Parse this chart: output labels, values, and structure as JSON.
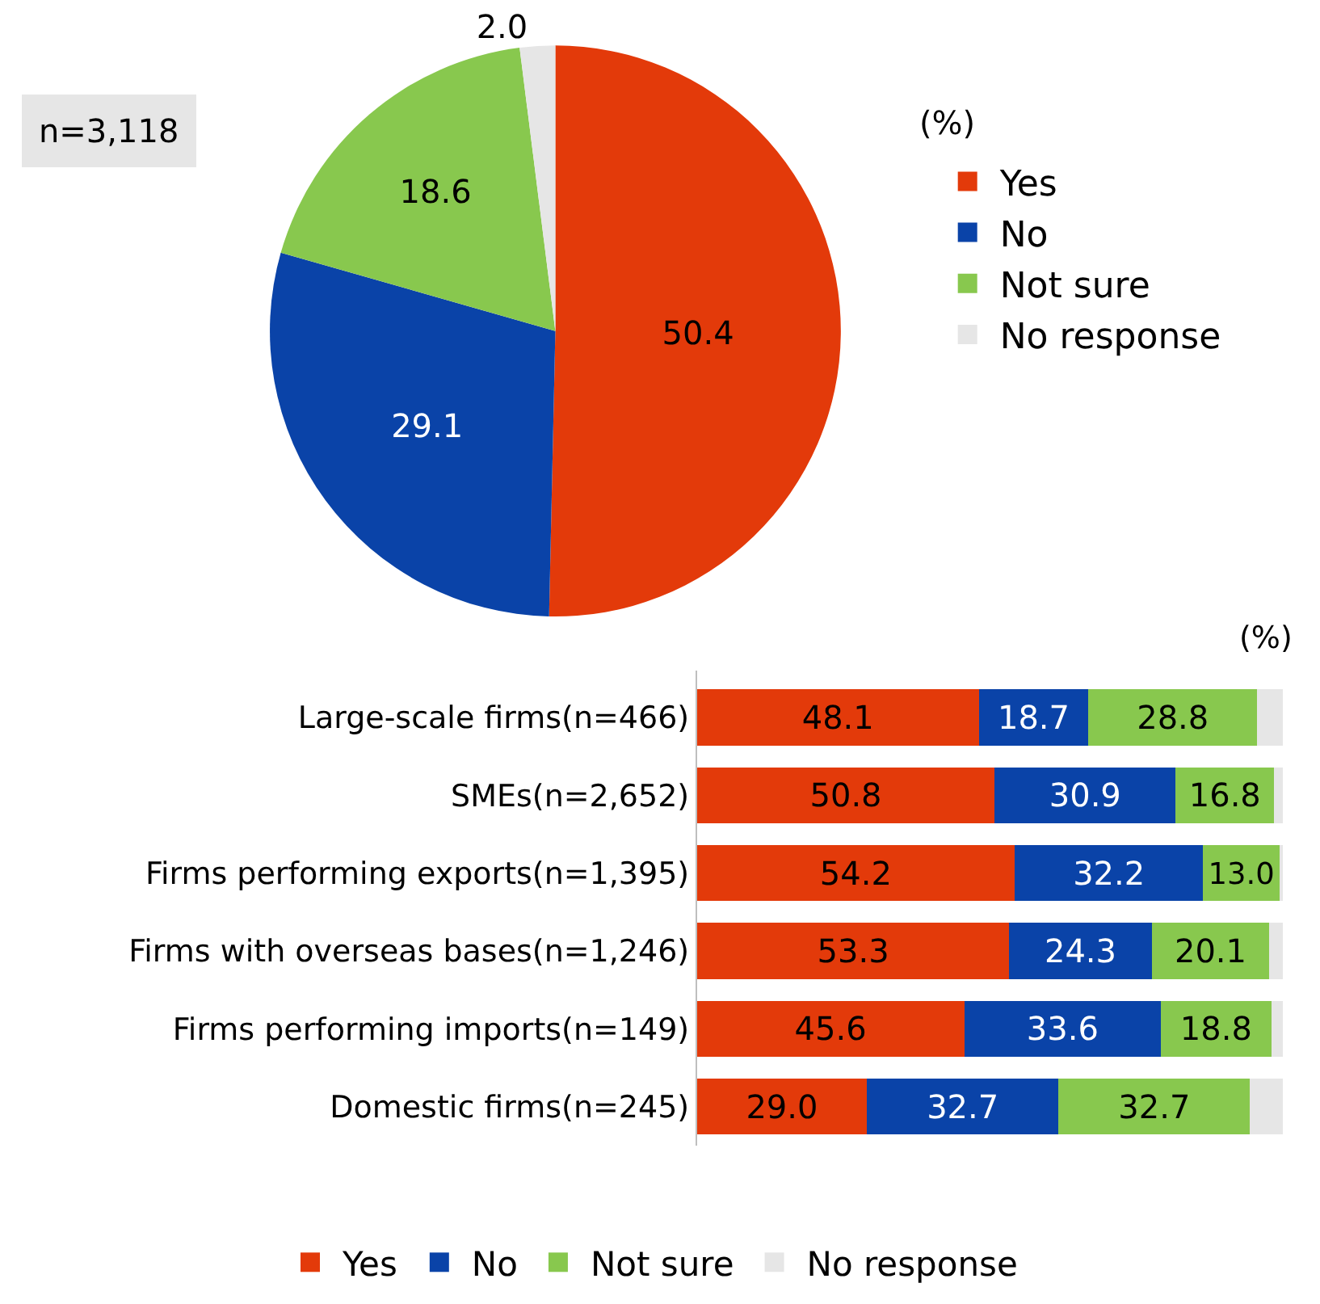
{
  "chart_data": [
    {
      "type": "pie",
      "annotations": [
        "n=3,118",
        "(%)"
      ],
      "categories": [
        "Yes",
        "No",
        "Not sure",
        "No response"
      ],
      "values": [
        50.4,
        29.1,
        18.6,
        2.0
      ],
      "colors": [
        "#e33a0a",
        "#0a43a8",
        "#88c84e",
        "#e6e6e6"
      ],
      "value_labels": [
        "50.4",
        "29.1",
        "18.6",
        "2.0"
      ],
      "legend": "right"
    },
    {
      "type": "bar",
      "orientation": "horizontal",
      "stacked": true,
      "annotations": [
        "(%)"
      ],
      "categories": [
        "Large-scale firms(n=466)",
        "SMEs(n=2,652)",
        "Firms performing exports(n=1,395)",
        "Firms with overseas bases(n=1,246)",
        "Firms performing imports(n=149)",
        "Domestic firms(n=245)"
      ],
      "xlim": [
        0,
        100
      ],
      "tick_labels": "y",
      "legend": "bottom",
      "series": [
        {
          "name": "Yes",
          "color": "#e33a0a",
          "values": [
            48.1,
            50.8,
            54.2,
            53.3,
            45.6,
            29.0
          ],
          "value_labels": [
            "48.1",
            "50.8",
            "54.2",
            "53.3",
            "45.6",
            "29.0"
          ]
        },
        {
          "name": "No",
          "color": "#0a43a8",
          "values": [
            18.7,
            30.9,
            32.2,
            24.3,
            33.6,
            32.7
          ],
          "value_labels": [
            "18.7",
            "30.9",
            "32.2",
            "24.3",
            "33.6",
            "32.7"
          ]
        },
        {
          "name": "Not sure",
          "color": "#88c84e",
          "values": [
            28.8,
            16.8,
            13.0,
            20.1,
            18.8,
            32.7
          ],
          "value_labels": [
            "28.8",
            "16.8",
            "13.0",
            "20.1",
            "18.8",
            "32.7"
          ]
        },
        {
          "name": "No response",
          "color": "#e6e6e6",
          "values": [
            4.4,
            1.5,
            0.6,
            2.3,
            2.0,
            5.6
          ],
          "value_labels": [
            null,
            null,
            null,
            null,
            null,
            null
          ]
        }
      ]
    }
  ]
}
